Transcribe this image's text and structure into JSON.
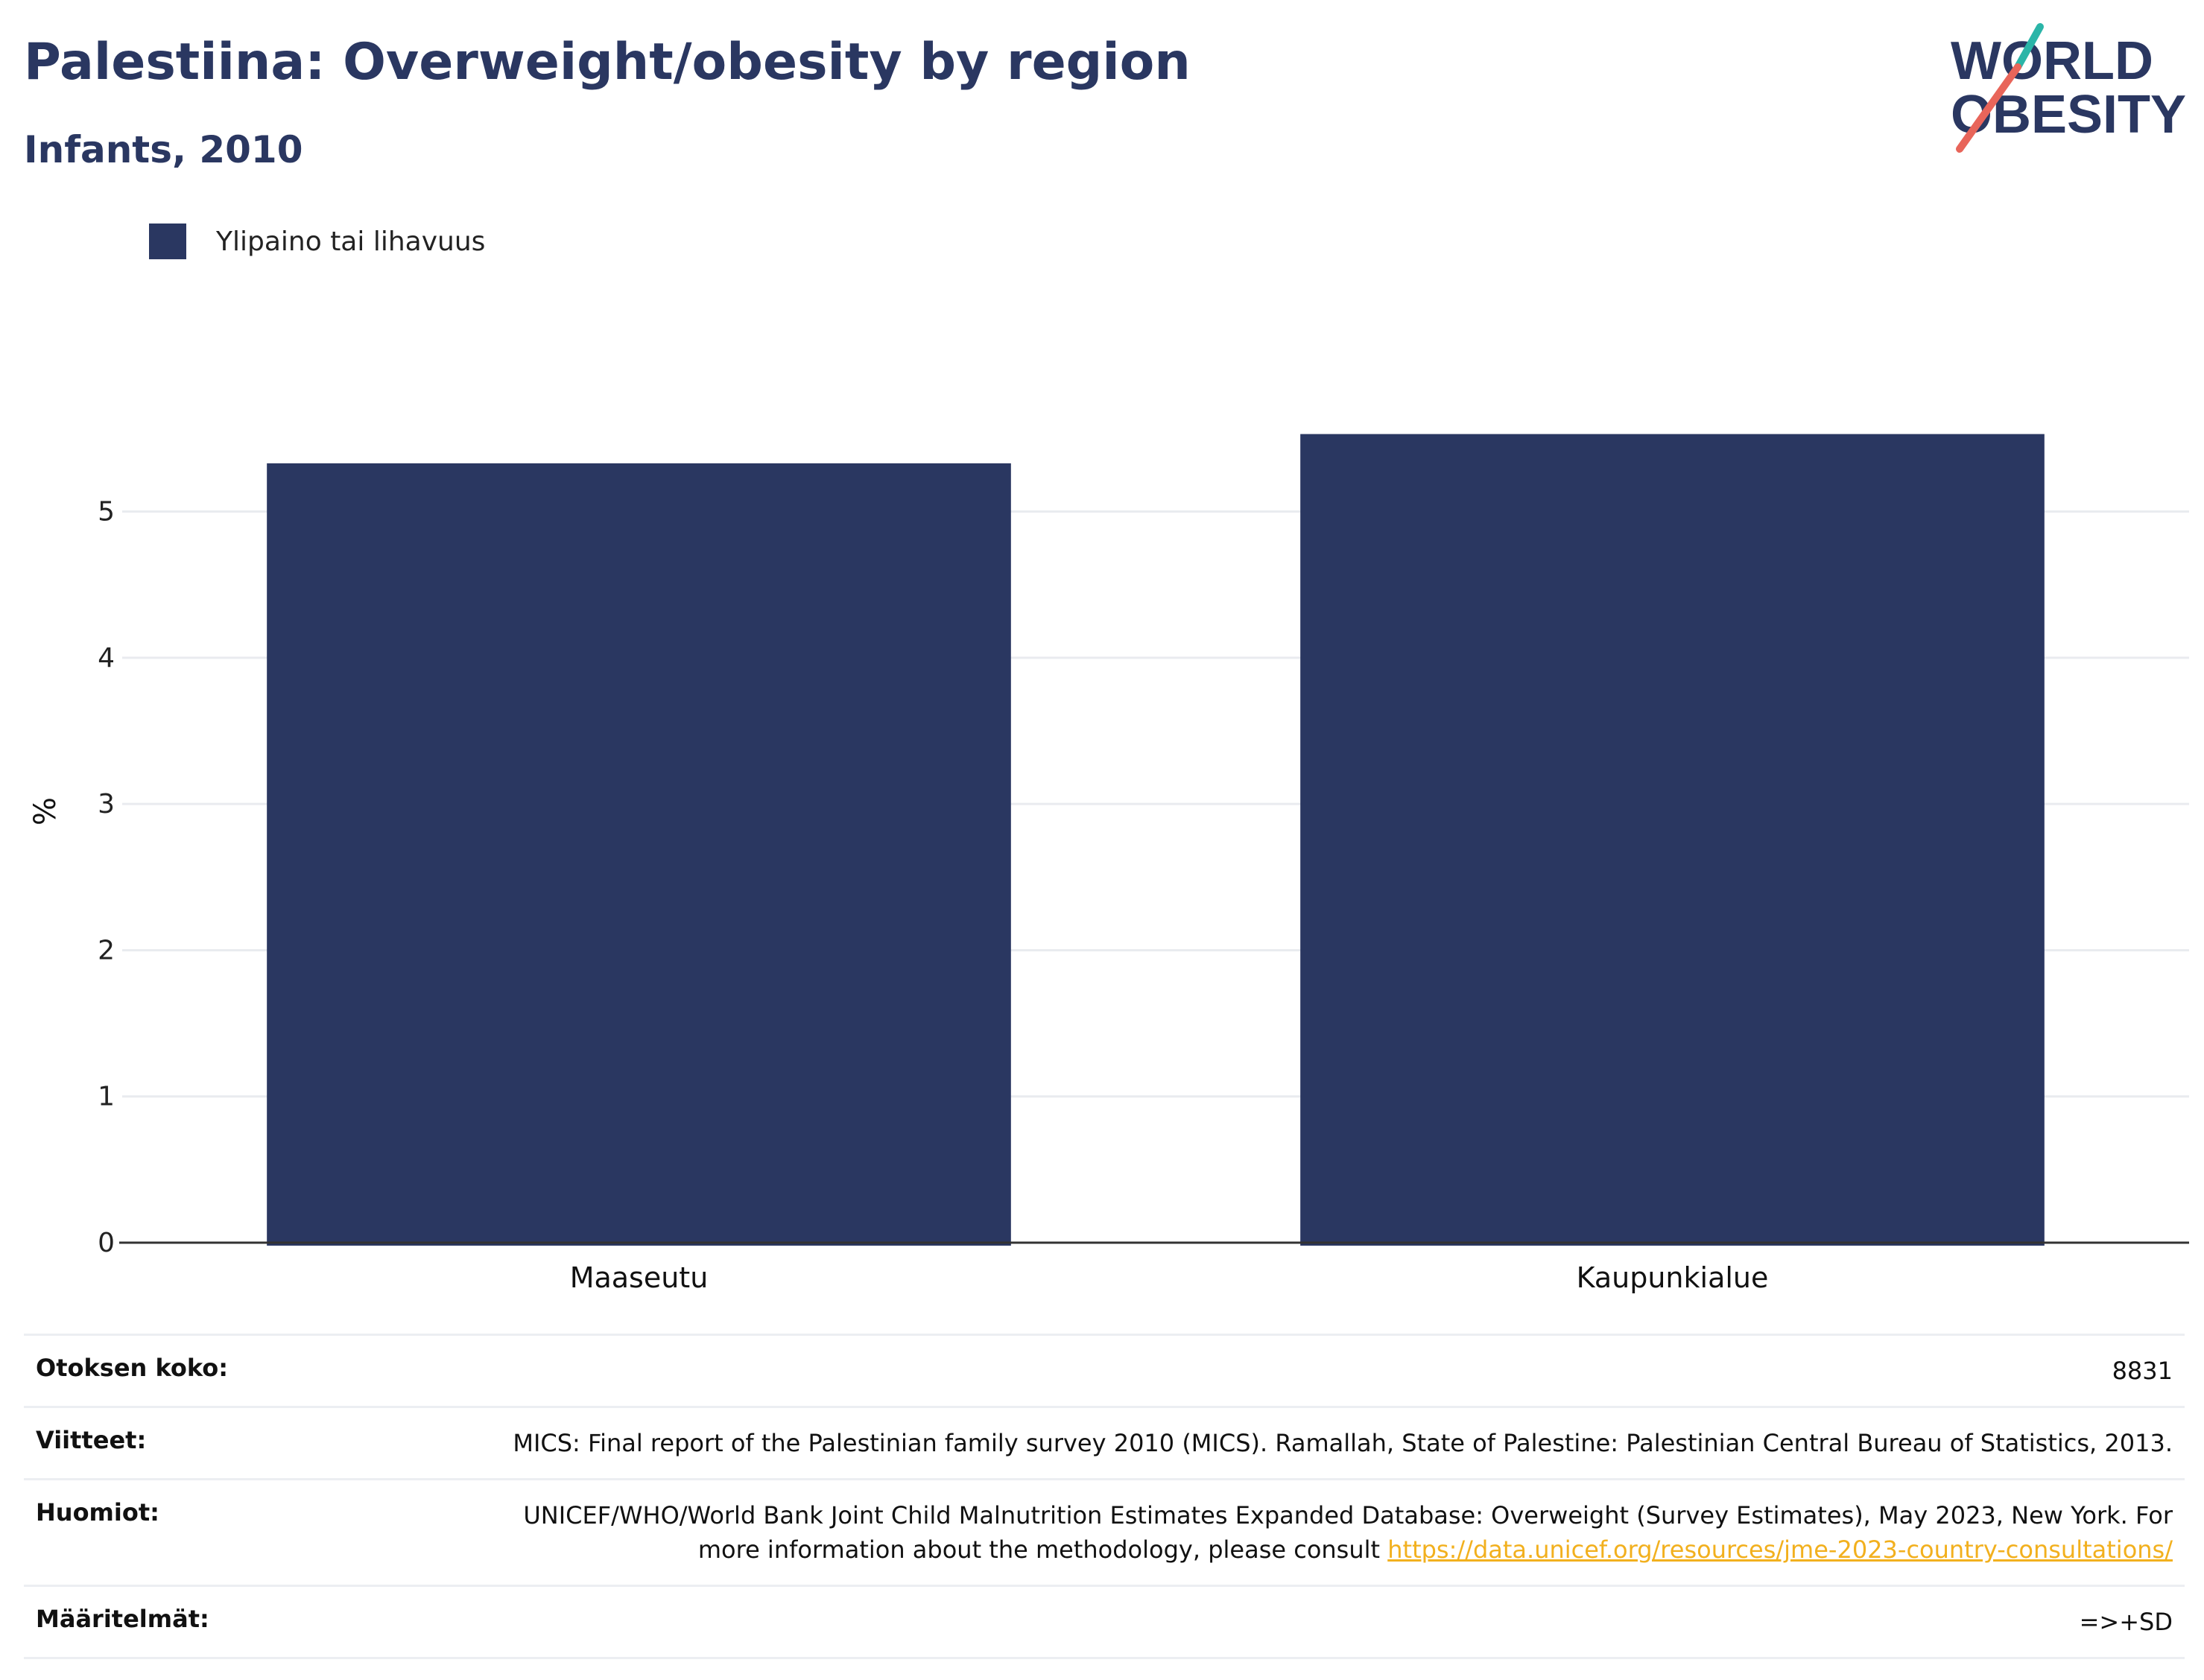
{
  "header": {
    "title": "Palestiina: Overweight/obesity by region",
    "subtitle": "Infants, 2010"
  },
  "logo": {
    "line1": "WORLD",
    "line2": "OBESITY",
    "colors": {
      "text": "#2a3761",
      "slash_top": "#2bb5a8",
      "slash_bottom": "#e8655a"
    }
  },
  "legend": {
    "items": [
      {
        "label": "Ylipaino tai lihavuus",
        "color": "#2a3761"
      }
    ]
  },
  "chart_data": {
    "type": "bar",
    "categories": [
      "Maaseutu",
      "Kaupunkialue"
    ],
    "series": [
      {
        "name": "Ylipaino tai lihavuus",
        "values": [
          5.33,
          5.53
        ],
        "color": "#2a3761"
      }
    ],
    "xlabel": "",
    "ylabel": "%",
    "ylim": [
      0,
      5.9
    ],
    "yticks": [
      0,
      1,
      2,
      3,
      4,
      5
    ],
    "grid": true,
    "legend_position": "top-left"
  },
  "info": {
    "rows": [
      {
        "key": "Otoksen koko:",
        "value": "8831"
      },
      {
        "key": "Viitteet:",
        "value": "MICS: Final report of the Palestinian family survey 2010 (MICS). Ramallah, State of Palestine: Palestinian Central Bureau of Statistics, 2013."
      },
      {
        "key": "Huomiot:",
        "value": "UNICEF/WHO/World Bank Joint Child Malnutrition Estimates Expanded Database: Overweight (Survey Estimates), May 2023, New York. For more information about the methodology, please consult ",
        "link": "https://data.unicef.org/resources/jme-2023-country-consultations/"
      },
      {
        "key": "Määritelmät:",
        "value": "=>+SD"
      }
    ]
  }
}
